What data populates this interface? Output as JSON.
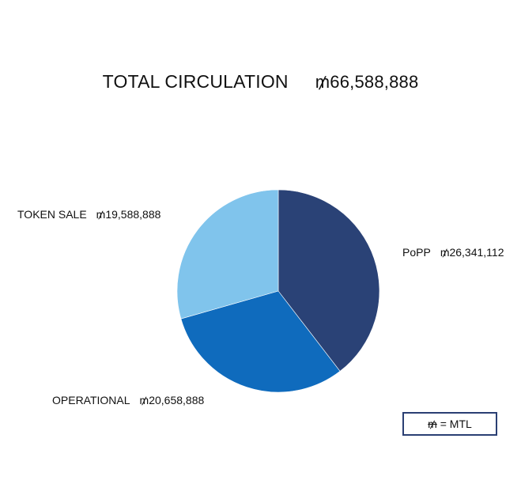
{
  "chart_data": {
    "type": "pie",
    "title": "TOTAL CIRCULATION",
    "total_value": "₥66,588,888",
    "currency_symbol": "₥",
    "slices": [
      {
        "name": "PoPP",
        "value": 26341112,
        "value_label": "₥26,341,112",
        "color": "#2a4276"
      },
      {
        "name": "OPERATIONAL",
        "value": 20658888,
        "value_label": "₥20,658,888",
        "color": "#0f6bbd"
      },
      {
        "name": "TOKEN SALE",
        "value": 19588888,
        "value_label": "₥19,588,888",
        "color": "#80c4ec"
      }
    ],
    "legend_note": {
      "symbol": "₥",
      "text": "= MTL"
    }
  }
}
